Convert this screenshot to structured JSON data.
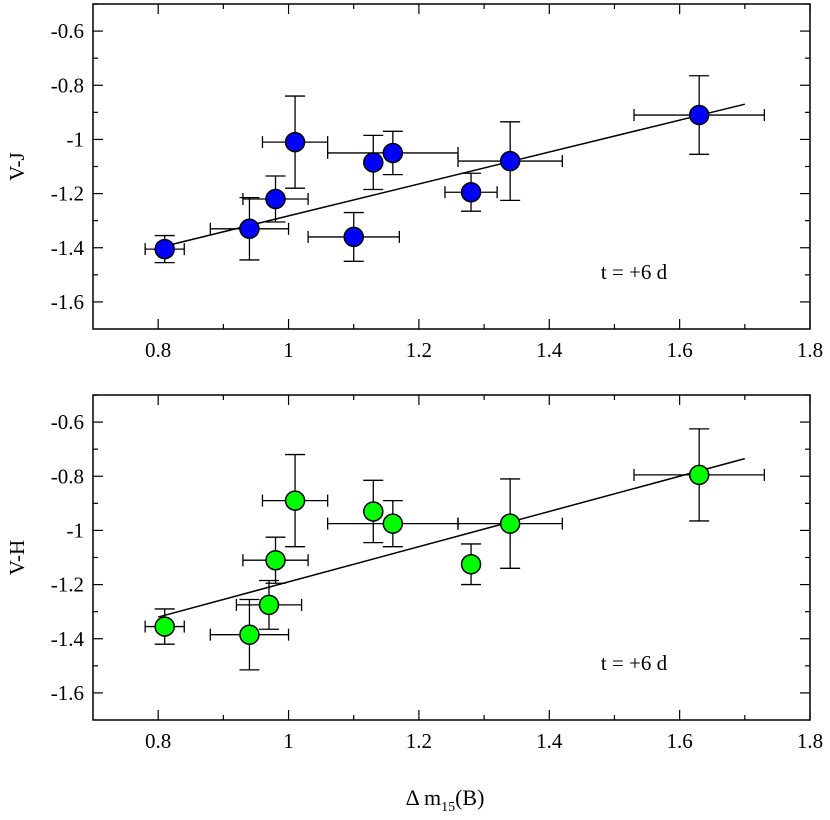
{
  "chart_data": [
    {
      "type": "scatter",
      "panel": "top",
      "ylabel": "V-J",
      "annotation": "t = +6 d",
      "marker_color": "#0000ff",
      "xlim": [
        0.7,
        1.8
      ],
      "ylim": [
        -1.7,
        -0.5
      ],
      "xticks": [
        0.8,
        1.0,
        1.2,
        1.4,
        1.6,
        1.8
      ],
      "xtick_labels": [
        "0.8",
        "1",
        "1.2",
        "1.4",
        "1.6",
        "1.8"
      ],
      "yticks": [
        -1.6,
        -1.4,
        -1.2,
        -1.0,
        -0.8,
        -0.6
      ],
      "ytick_labels": [
        "-1.6",
        "-1.4",
        "-1.2",
        "-1",
        "-0.8",
        "-0.6"
      ],
      "points": [
        {
          "x": 0.81,
          "y": -1.405,
          "xerr": 0.03,
          "yerr": 0.05
        },
        {
          "x": 0.94,
          "y": -1.33,
          "xerr": 0.06,
          "yerr": 0.115
        },
        {
          "x": 0.98,
          "y": -1.22,
          "xerr": 0.05,
          "yerr": 0.085
        },
        {
          "x": 1.01,
          "y": -1.01,
          "xerr": 0.05,
          "yerr": 0.17
        },
        {
          "x": 1.1,
          "y": -1.36,
          "xerr": 0.07,
          "yerr": 0.09
        },
        {
          "x": 1.13,
          "y": -1.085,
          "xerr": 0.0,
          "yerr": 0.1
        },
        {
          "x": 1.16,
          "y": -1.05,
          "xerr": 0.1,
          "yerr": 0.08
        },
        {
          "x": 1.28,
          "y": -1.195,
          "xerr": 0.04,
          "yerr": 0.07
        },
        {
          "x": 1.34,
          "y": -1.08,
          "xerr": 0.08,
          "yerr": 0.145
        },
        {
          "x": 1.63,
          "y": -0.91,
          "xerr": 0.1,
          "yerr": 0.145
        }
      ],
      "fit_line": {
        "x": [
          0.8,
          1.7
        ],
        "y": [
          -1.4,
          -0.87
        ]
      }
    },
    {
      "type": "scatter",
      "panel": "bottom",
      "ylabel": "V-H",
      "annotation": "t = +6 d",
      "marker_color": "#00ff00",
      "xlim": [
        0.7,
        1.8
      ],
      "ylim": [
        -1.7,
        -0.5
      ],
      "xticks": [
        0.8,
        1.0,
        1.2,
        1.4,
        1.6,
        1.8
      ],
      "xtick_labels": [
        "0.8",
        "1",
        "1.2",
        "1.4",
        "1.6",
        "1.8"
      ],
      "yticks": [
        -1.6,
        -1.4,
        -1.2,
        -1.0,
        -0.8,
        -0.6
      ],
      "ytick_labels": [
        "-1.6",
        "-1.4",
        "-1.2",
        "-1",
        "-0.8",
        "-0.6"
      ],
      "points": [
        {
          "x": 0.81,
          "y": -1.355,
          "xerr": 0.03,
          "yerr": 0.065
        },
        {
          "x": 0.94,
          "y": -1.385,
          "xerr": 0.06,
          "yerr": 0.13
        },
        {
          "x": 0.97,
          "y": -1.275,
          "xerr": 0.05,
          "yerr": 0.09
        },
        {
          "x": 0.98,
          "y": -1.11,
          "xerr": 0.05,
          "yerr": 0.085
        },
        {
          "x": 1.01,
          "y": -0.89,
          "xerr": 0.05,
          "yerr": 0.17
        },
        {
          "x": 1.13,
          "y": -0.93,
          "xerr": 0.0,
          "yerr": 0.115
        },
        {
          "x": 1.16,
          "y": -0.975,
          "xerr": 0.1,
          "yerr": 0.085
        },
        {
          "x": 1.28,
          "y": -1.125,
          "xerr": 0.0,
          "yerr": 0.075
        },
        {
          "x": 1.34,
          "y": -0.975,
          "xerr": 0.08,
          "yerr": 0.165
        },
        {
          "x": 1.63,
          "y": -0.795,
          "xerr": 0.1,
          "yerr": 0.17
        }
      ],
      "fit_line": {
        "x": [
          0.8,
          1.7
        ],
        "y": [
          -1.32,
          -0.735
        ]
      }
    }
  ],
  "xlabel": {
    "main": "Δ m",
    "subscript": "15",
    "suffix": "(B)"
  }
}
